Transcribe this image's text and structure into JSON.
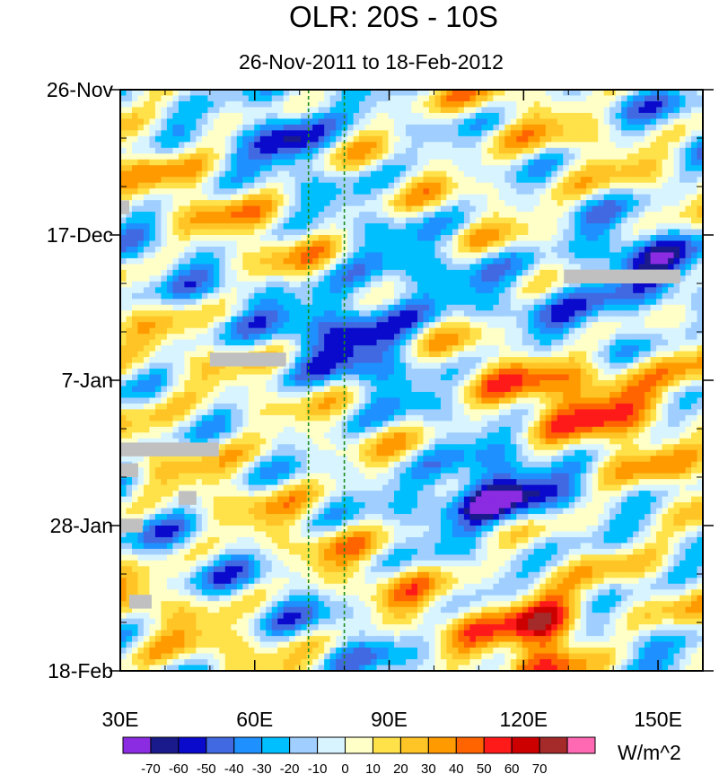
{
  "chart_data": {
    "type": "heatmap",
    "title": "OLR: 20S - 10S",
    "subtitle": "26-Nov-2011 to 18-Feb-2012",
    "x_axis": {
      "label": "",
      "range": [
        30,
        160
      ],
      "ticks": [
        30,
        60,
        90,
        120,
        150
      ],
      "tick_labels": [
        "30E",
        "60E",
        "90E",
        "120E",
        "150E"
      ]
    },
    "y_axis": {
      "label": "",
      "range_days": [
        0,
        84
      ],
      "direction": "time increases downward",
      "ticks": [
        0,
        21,
        42,
        63,
        84
      ],
      "tick_labels": [
        "26-Nov",
        "17-Dec",
        "7-Jan",
        "28-Jan",
        "18-Feb"
      ]
    },
    "reference_lines": {
      "style": "dashed green vertical",
      "longitudes": [
        72,
        80
      ]
    },
    "colorbar": {
      "unit_label": "W/m^2",
      "levels": [
        -70,
        -60,
        -50,
        -40,
        -30,
        -20,
        -10,
        0,
        10,
        20,
        30,
        40,
        50,
        60,
        70
      ],
      "level_labels": [
        "-70",
        "-60",
        "-50",
        "-40",
        "-30",
        "-20",
        "-10",
        "0",
        "10",
        "20",
        "30",
        "40",
        "50",
        "60",
        "70"
      ],
      "colors": [
        "#8b2be2",
        "#1a1a8c",
        "#0a0acd",
        "#4169e1",
        "#1e90ff",
        "#00bfff",
        "#a0cfff",
        "#d8f4ff",
        "#ffffc8",
        "#ffe14a",
        "#ffc425",
        "#ff9a00",
        "#ff6400",
        "#ff1a1a",
        "#cd0000",
        "#a52a2a",
        "#ff69b4"
      ]
    },
    "features": [
      {
        "name": "negative anomaly band",
        "lon": [
          100,
          125
        ],
        "day": [
          55,
          62
        ],
        "value": -70
      },
      {
        "name": "positive anomaly max",
        "lon": [
          118,
          132
        ],
        "day": [
          73,
          81
        ],
        "value": 70
      },
      {
        "name": "positive anomaly region",
        "lon": [
          125,
          160
        ],
        "day": [
          38,
          48
        ],
        "value": 45
      },
      {
        "name": "negative anomaly band",
        "lon": [
          130,
          160
        ],
        "day": [
          20,
          34
        ],
        "value": -50
      },
      {
        "name": "negative anomaly band",
        "lon": [
          60,
          75
        ],
        "day": [
          2,
          10
        ],
        "value": -50
      },
      {
        "name": "negative anomaly band",
        "lon": [
          72,
          100
        ],
        "day": [
          26,
          40
        ],
        "value": -55
      }
    ],
    "missing_data_boxes": [
      {
        "lon": [
          30,
          32
        ],
        "day": [
          16,
          18
        ]
      },
      {
        "lon": [
          129,
          155
        ],
        "day": [
          26,
          28
        ]
      },
      {
        "lon": [
          50,
          67
        ],
        "day": [
          38,
          40
        ]
      },
      {
        "lon": [
          30,
          52
        ],
        "day": [
          51,
          53
        ]
      },
      {
        "lon": [
          30,
          34
        ],
        "day": [
          54,
          56
        ]
      },
      {
        "lon": [
          43,
          47
        ],
        "day": [
          58,
          60
        ]
      },
      {
        "lon": [
          30,
          35
        ],
        "day": [
          62,
          64
        ]
      },
      {
        "lon": [
          32,
          37
        ],
        "day": [
          73,
          75
        ]
      }
    ],
    "grid": false
  }
}
